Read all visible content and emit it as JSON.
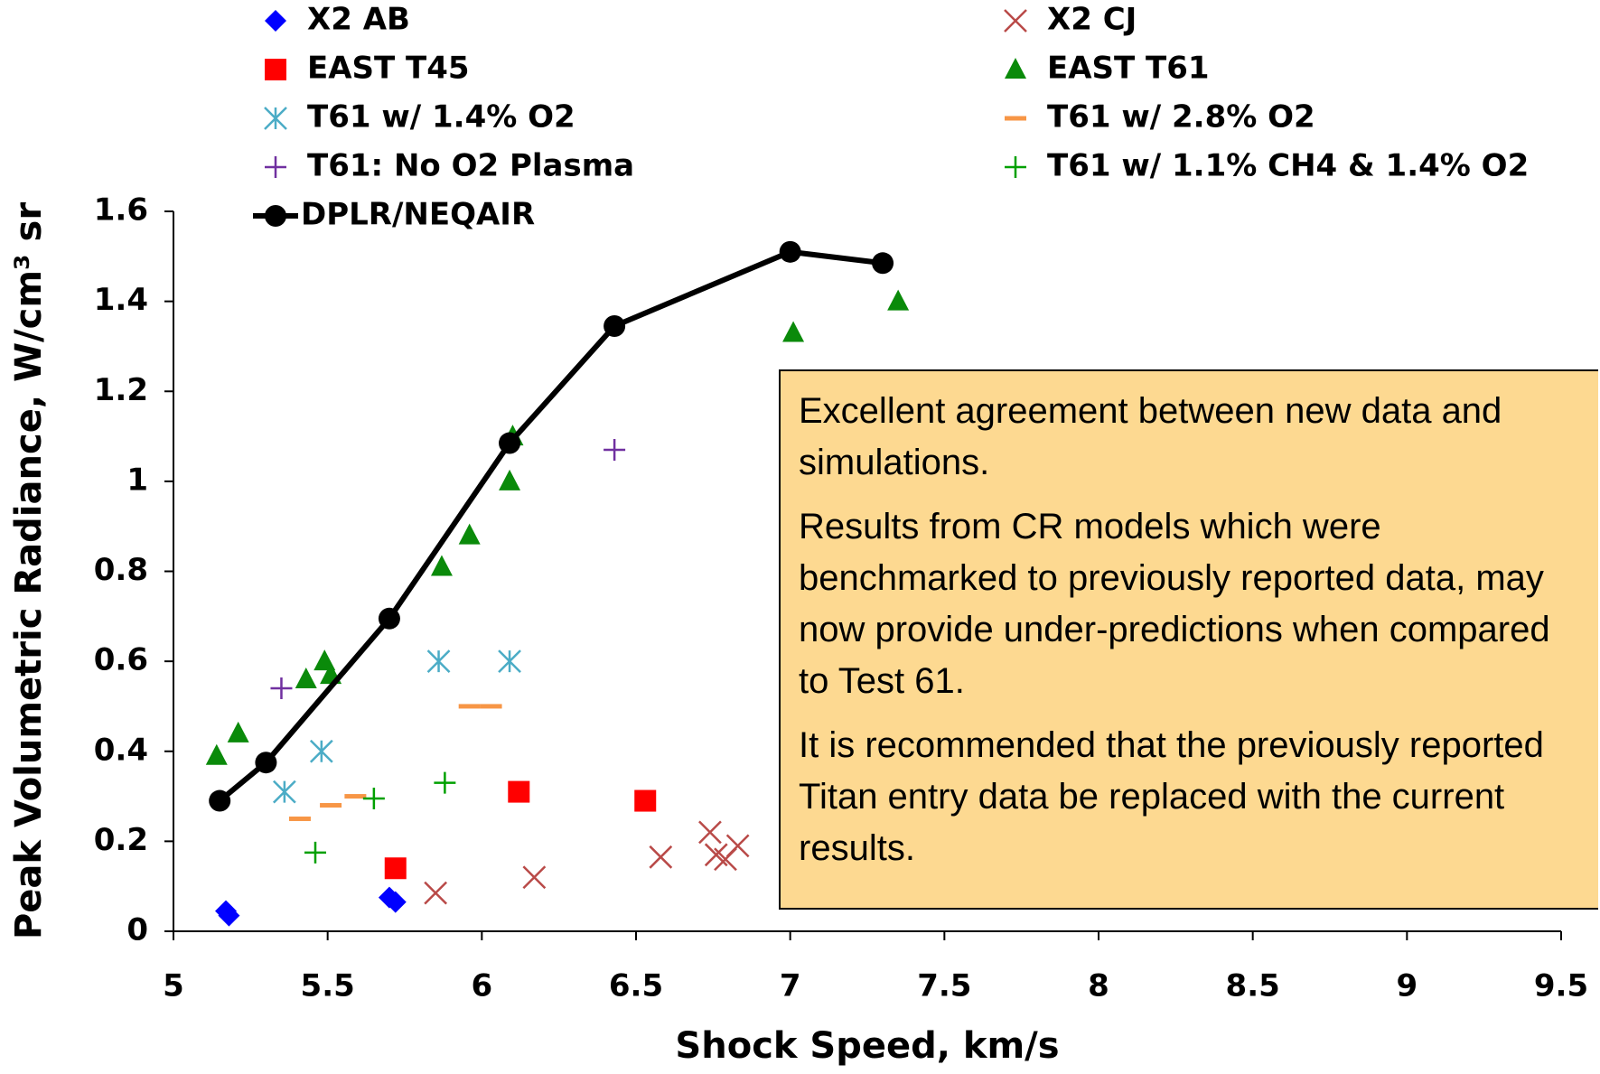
{
  "chart_data": {
    "type": "scatter",
    "x_label": "Shock Speed, km/s",
    "y_label": "Peak Volumetric Radiance, W/cm³ sr",
    "xlim": [
      5,
      9.5
    ],
    "xticks": [
      5,
      5.5,
      6,
      6.5,
      7,
      7.5,
      8,
      8.5,
      9,
      9.5
    ],
    "ylim": [
      0,
      1.6
    ],
    "yticks": [
      0,
      0.2,
      0.4,
      0.6,
      0.8,
      1,
      1.2,
      1.4,
      1.6
    ],
    "grid": false,
    "annotations": [
      "Excellent agreement between new data and simulations.",
      "Results from CR models which were benchmarked to previously reported data, may now provide under-predictions when compared to Test 61.",
      "It is recommended that the previously reported Titan entry data be replaced with the current results."
    ],
    "series": [
      {
        "name": "X2 AB",
        "color": "#0000ff",
        "marker": "diamond",
        "x": [
          5.17,
          5.18,
          5.7,
          5.72
        ],
        "values": [
          0.045,
          0.035,
          0.075,
          0.065
        ]
      },
      {
        "name": "X2 CJ",
        "color": "#b94a48",
        "marker": "x",
        "x": [
          5.85,
          6.17,
          6.58,
          6.74,
          6.76,
          6.79,
          6.83
        ],
        "values": [
          0.085,
          0.12,
          0.165,
          0.22,
          0.17,
          0.16,
          0.19
        ]
      },
      {
        "name": "EAST T45",
        "color": "#ff0000",
        "marker": "square",
        "x": [
          5.72,
          6.12,
          6.53
        ],
        "values": [
          0.14,
          0.31,
          0.29
        ]
      },
      {
        "name": "EAST T61",
        "color": "#0a8a0a",
        "marker": "triangle",
        "x": [
          5.14,
          5.21,
          5.43,
          5.49,
          5.51,
          5.87,
          5.96,
          6.09,
          6.1,
          7.01,
          7.35
        ],
        "values": [
          0.39,
          0.44,
          0.56,
          0.6,
          0.57,
          0.81,
          0.88,
          1.0,
          1.1,
          1.33,
          1.4
        ]
      },
      {
        "name": "T61 w/ 1.4% O2",
        "color": "#4bacc6",
        "marker": "asterisk",
        "x": [
          5.36,
          5.48,
          5.86,
          6.09
        ],
        "values": [
          0.31,
          0.4,
          0.6,
          0.6
        ]
      },
      {
        "name": "T61 w/ 2.8% O2",
        "color": "#f79646",
        "marker": "dash",
        "x": [
          5.41,
          5.51,
          5.59,
          5.96,
          6.03
        ],
        "values": [
          0.25,
          0.28,
          0.3,
          0.5,
          0.5
        ]
      },
      {
        "name": "T61: No O2 Plasma",
        "color": "#7030a0",
        "marker": "plus",
        "x": [
          5.35,
          6.43
        ],
        "values": [
          0.54,
          1.07
        ]
      },
      {
        "name": "T61 w/ 1.1% CH4 & 1.4% O2",
        "color": "#00a000",
        "marker": "plus",
        "x": [
          5.46,
          5.65,
          5.88
        ],
        "values": [
          0.175,
          0.295,
          0.33
        ]
      },
      {
        "name": "DPLR/NEQAIR",
        "color": "#000000",
        "marker": "line-circle",
        "x": [
          5.15,
          5.3,
          5.7,
          6.09,
          6.43,
          7.0,
          7.3
        ],
        "values": [
          0.29,
          0.375,
          0.695,
          1.085,
          1.345,
          1.51,
          1.485
        ]
      }
    ]
  }
}
